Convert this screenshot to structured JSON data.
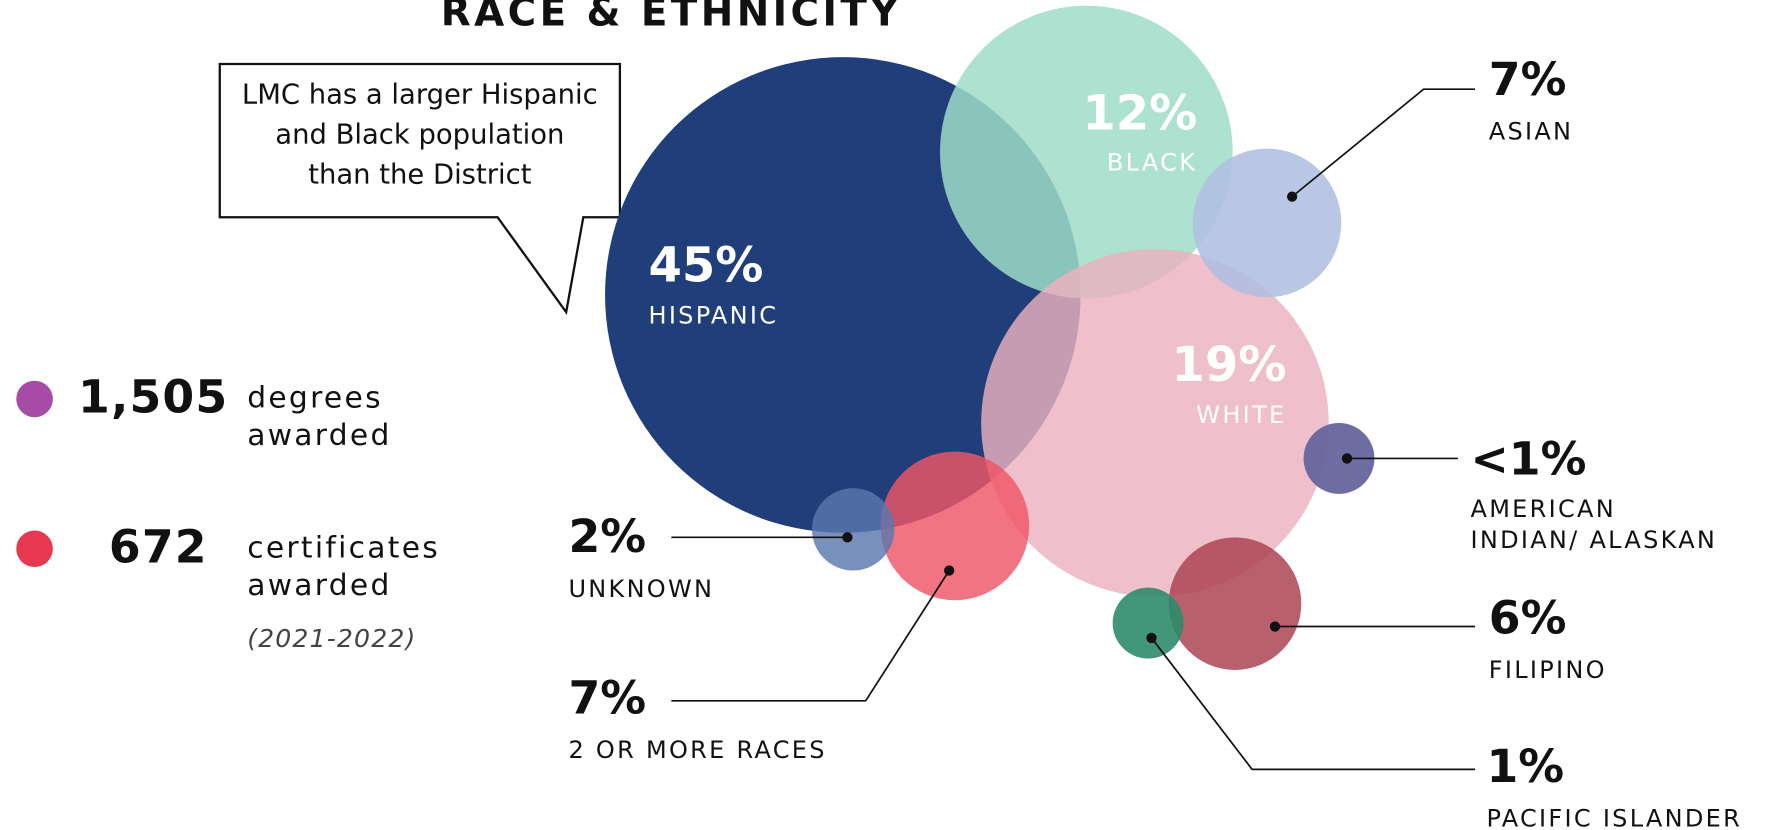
{
  "chart_data": {
    "type": "bubble",
    "title": "RACE & ETHNICITY",
    "categories": [
      [
        "HISPANIC"
      ],
      [
        "BLACK"
      ],
      [
        "WHITE"
      ],
      [
        "ASIAN"
      ],
      [
        "AMERICAN",
        "INDIAN/ ALASKAN"
      ],
      [
        "FILIPINO"
      ],
      [
        "PACIFIC ISLANDER"
      ],
      [
        "2 OR MORE RACES"
      ],
      [
        "UNKNOWN"
      ]
    ],
    "values": [
      45,
      12,
      19,
      7,
      0.5,
      6,
      1,
      7,
      2
    ],
    "value_labels": [
      "45%",
      "12%",
      "19%",
      "7%",
      "<1%",
      "6%",
      "1%",
      "7%",
      "2%"
    ],
    "colors": [
      "#1f3e7a",
      "#9fdcc8",
      "#ebb1c0",
      "#b0bfe0",
      "#66659c",
      "#ad4455",
      "#2e8b6a",
      "#ef5666",
      "#5a78ad"
    ],
    "annotation": [
      "LMC has a larger Hispanic",
      "and Black population",
      "than the District"
    ]
  },
  "stats": {
    "items": [
      {
        "value": 1505,
        "label": "1,505",
        "text": [
          "degrees",
          "awarded"
        ],
        "color": "#a64ca6"
      },
      {
        "value": 672,
        "label": "672",
        "text": [
          "certificates",
          "awarded"
        ],
        "color": "#e8384f"
      }
    ],
    "period": "(2021-2022)"
  }
}
